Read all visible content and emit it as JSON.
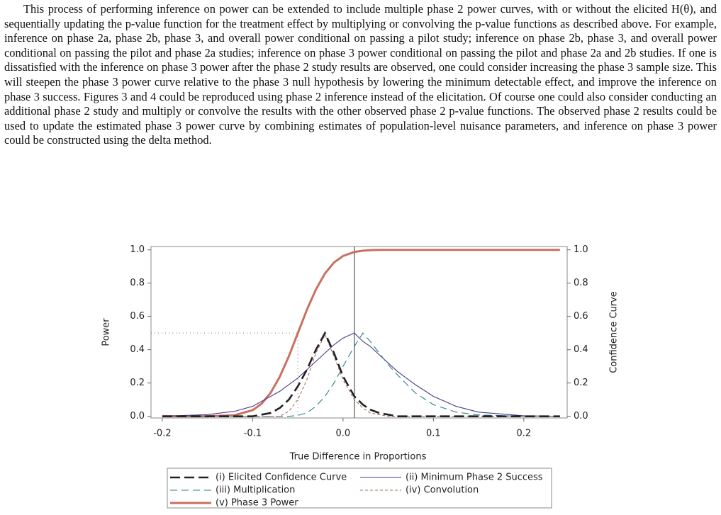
{
  "paragraph": "This process of performing inference on power can be extended to include multiple phase 2 power curves, with or without the elicited H(θ), and sequentially updating the p-value function for the treatment effect by multiplying or convolving the p-value functions as described above. For example, inference on phase 2a, phase 2b, phase 3, and overall power conditional on passing a pilot study; inference on phase 2b, phase 3, and overall power conditional on passing the pilot and phase 2a studies; inference on phase 3 power conditional on passing the pilot and phase 2a and 2b studies. If one is dissatisfied with the inference on phase 3 power after the phase 2 study results are observed, one could consider increasing the phase 3 sample size. This will steepen the phase 3 power curve relative to the phase 3 null hypothesis by lowering the minimum detectable effect, and improve the inference on phase 3 success. Figures 3 and 4 could be reproduced using phase 2 inference instead of the elicitation. Of course one could also consider conducting an additional phase 2 study and multiply or convolve the results with the other observed phase 2 p-value functions. The observed phase 2 results could be used to update the estimated phase 3 power curve by combining estimates of population-level nuisance parameters, and inference on phase 3 power could be constructed using the delta method.",
  "chart_data": {
    "type": "line",
    "x_label": "True Difference in Proportions",
    "y_label": "Power",
    "y2_label": "Confidence Curve",
    "x": [
      -0.2,
      -0.15,
      -0.12,
      -0.1,
      -0.09,
      -0.08,
      -0.07,
      -0.06,
      -0.05,
      -0.04,
      -0.03,
      -0.02,
      -0.01,
      0,
      0.0125,
      0.022,
      0.03,
      0.04,
      0.05,
      0.06,
      0.08,
      0.1,
      0.125,
      0.15,
      0.2,
      0.24
    ],
    "series": [
      {
        "name": "(i) Elicited Confidence Curve",
        "color": "#222222",
        "style": "long-dash",
        "axis": "y2",
        "values": [
          0,
          0,
          0,
          0,
          0.01,
          0.02,
          0.05,
          0.1,
          0.18,
          0.28,
          0.4,
          0.5,
          0.38,
          0.24,
          0.12,
          0.07,
          0.04,
          0.02,
          0.01,
          0,
          0,
          0,
          0,
          0,
          0,
          0
        ]
      },
      {
        "name": "(ii) Minimum Phase 2 Success",
        "color": "#4b3a8a",
        "style": "solid",
        "axis": "y2",
        "values": [
          0,
          0.01,
          0.03,
          0.06,
          0.09,
          0.12,
          0.15,
          0.19,
          0.23,
          0.28,
          0.33,
          0.38,
          0.43,
          0.47,
          0.5,
          0.45,
          0.42,
          0.37,
          0.32,
          0.27,
          0.19,
          0.12,
          0.06,
          0.025,
          0.003,
          0
        ]
      },
      {
        "name": "(iii) Multiplication",
        "color": "#2a7f8a",
        "style": "dash",
        "axis": "y2",
        "values": [
          0,
          0,
          0,
          0,
          0,
          0,
          0,
          0,
          0.005,
          0.02,
          0.06,
          0.12,
          0.2,
          0.3,
          0.42,
          0.5,
          0.45,
          0.38,
          0.31,
          0.25,
          0.14,
          0.07,
          0.025,
          0.008,
          0,
          0
        ]
      },
      {
        "name": "(iv) Convolution",
        "color": "#a0705a",
        "style": "short-dash",
        "axis": "y2",
        "values": [
          0,
          0,
          0,
          0,
          0,
          0,
          0,
          0.03,
          0.1,
          0.22,
          0.38,
          0.49,
          0.36,
          0.22,
          0.1,
          0.05,
          0.02,
          0.01,
          0,
          0,
          0,
          0,
          0,
          0,
          0,
          0
        ]
      },
      {
        "name": "(v) Phase 3 Power",
        "color": "#c97060",
        "style": "solid",
        "axis": "y",
        "values": [
          0,
          0,
          0.006,
          0.037,
          0.076,
          0.142,
          0.238,
          0.36,
          0.5,
          0.64,
          0.762,
          0.858,
          0.924,
          0.963,
          0.987,
          0.995,
          0.998,
          1,
          1,
          1,
          1,
          1,
          1,
          1,
          1,
          1
        ]
      }
    ],
    "reference_x": 0.0125,
    "guide_point": {
      "x": -0.05,
      "y": 0.5
    },
    "xlim": [
      -0.2125,
      0.248
    ],
    "xticks": [
      -0.2,
      -0.1,
      {
        "value": 0,
        "label": "0.0"
      },
      0.1,
      0.2
    ],
    "ylim": [
      -0.01,
      1.02
    ],
    "yticks": [
      {
        "value": 0,
        "label": "0.0"
      },
      0.2,
      0.4,
      0.6,
      0.8,
      {
        "value": 1,
        "label": "1.0"
      }
    ],
    "y2lim": [
      -0.01,
      1.02
    ],
    "y2ticks": [
      {
        "value": 0,
        "label": "0.0"
      },
      0.2,
      0.4,
      0.6,
      0.8,
      {
        "value": 1,
        "label": "1.0"
      }
    ]
  }
}
